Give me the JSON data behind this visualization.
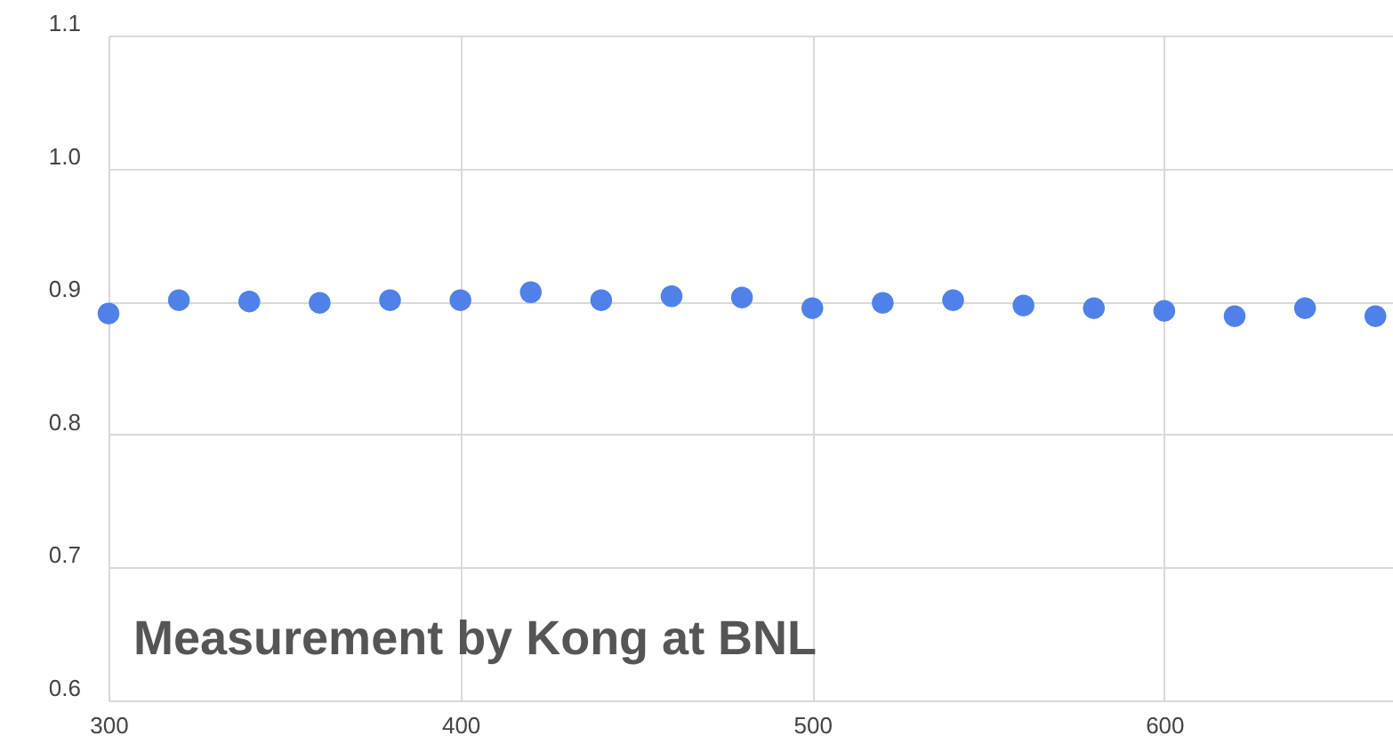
{
  "chart_data": {
    "type": "scatter",
    "x": [
      300,
      320,
      340,
      360,
      380,
      400,
      420,
      440,
      460,
      480,
      500,
      520,
      540,
      560,
      580,
      600,
      620,
      640,
      660
    ],
    "series": [
      {
        "color": "#4f81e8",
        "values": [
          0.891,
          0.901,
          0.9,
          0.899,
          0.901,
          0.901,
          0.907,
          0.901,
          0.904,
          0.903,
          0.895,
          0.899,
          0.901,
          0.897,
          0.895,
          0.893,
          0.889,
          0.895,
          0.889
        ]
      }
    ],
    "xlim": [
      300,
      665
    ],
    "xticks": [
      300,
      400,
      500,
      600
    ],
    "ylim": [
      0.6,
      1.1
    ],
    "yticks": [
      {
        "value": 0.6,
        "label": "0.6"
      },
      {
        "value": 0.7,
        "label": "0.7"
      },
      {
        "value": 0.8,
        "label": "0.8"
      },
      {
        "value": 0.9,
        "label": "0.9"
      },
      {
        "value": 1.0,
        "label": "1.0"
      },
      {
        "value": 1.1,
        "label": "1.1"
      }
    ],
    "grid": true,
    "marker": "circle",
    "annotations": [
      "Measurement by Kong at BNL"
    ]
  }
}
